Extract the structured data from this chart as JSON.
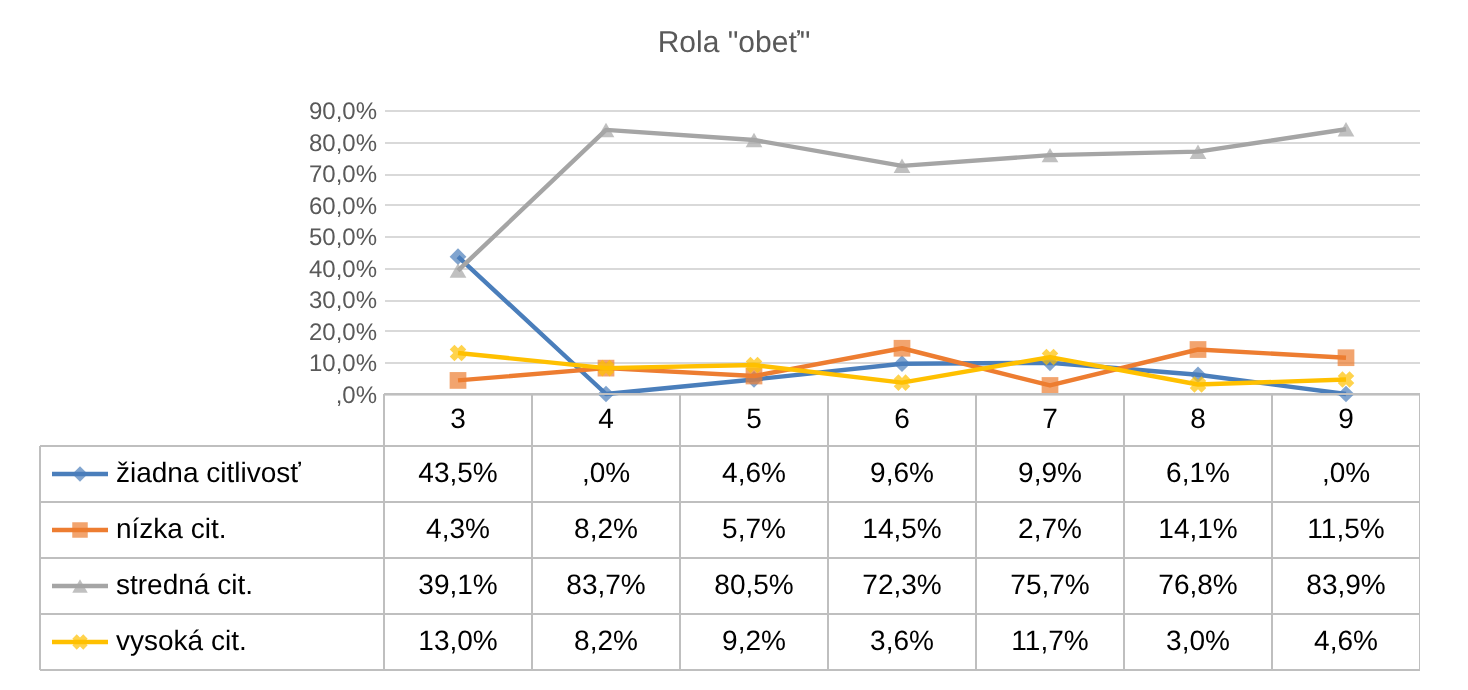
{
  "chart_data": {
    "type": "line",
    "title": "Rola \"obeť\"",
    "categories": [
      "3",
      "4",
      "5",
      "6",
      "7",
      "8",
      "9"
    ],
    "ylim": [
      0,
      90
    ],
    "yticks": [
      {
        "value": 0,
        "label": ",0%"
      },
      {
        "value": 10,
        "label": "10,0%"
      },
      {
        "value": 20,
        "label": "20,0%"
      },
      {
        "value": 30,
        "label": "30,0%"
      },
      {
        "value": 40,
        "label": "40,0%"
      },
      {
        "value": 50,
        "label": "50,0%"
      },
      {
        "value": 60,
        "label": "60,0%"
      },
      {
        "value": 70,
        "label": "70,0%"
      },
      {
        "value": 80,
        "label": "80,0%"
      },
      {
        "value": 90,
        "label": "90,0%"
      }
    ],
    "grid": "y",
    "legend": "bottom",
    "line_style": "solid",
    "series": [
      {
        "name": "žiadna citlivosť",
        "color": "#4a7ebb",
        "marker": "diamond",
        "values": [
          43.5,
          0,
          4.6,
          9.6,
          9.9,
          6.1,
          0
        ],
        "value_labels": [
          "43,5%",
          ",0%",
          "4,6%",
          "9,6%",
          "9,9%",
          "6,1%",
          ",0%"
        ]
      },
      {
        "name": "nízka cit.",
        "color": "#ed7d31",
        "marker": "square",
        "values": [
          4.3,
          8.2,
          5.7,
          14.5,
          2.7,
          14.1,
          11.5
        ],
        "value_labels": [
          "4,3%",
          "8,2%",
          "5,7%",
          "14,5%",
          "2,7%",
          "14,1%",
          "11,5%"
        ]
      },
      {
        "name": "stredná cit.",
        "color": "#a5a5a5",
        "marker": "triangle",
        "values": [
          39.1,
          83.7,
          80.5,
          72.3,
          75.7,
          76.8,
          83.9
        ],
        "value_labels": [
          "39,1%",
          "83,7%",
          "80,5%",
          "72,3%",
          "75,7%",
          "76,8%",
          "83,9%"
        ]
      },
      {
        "name": "vysoká cit.",
        "color": "#ffc000",
        "marker": "cross",
        "values": [
          13.0,
          8.2,
          9.2,
          3.6,
          11.7,
          3.0,
          4.6
        ],
        "value_labels": [
          "13,0%",
          "8,2%",
          "9,2%",
          "3,6%",
          "11,7%",
          "3,0%",
          "4,6%"
        ]
      }
    ]
  }
}
